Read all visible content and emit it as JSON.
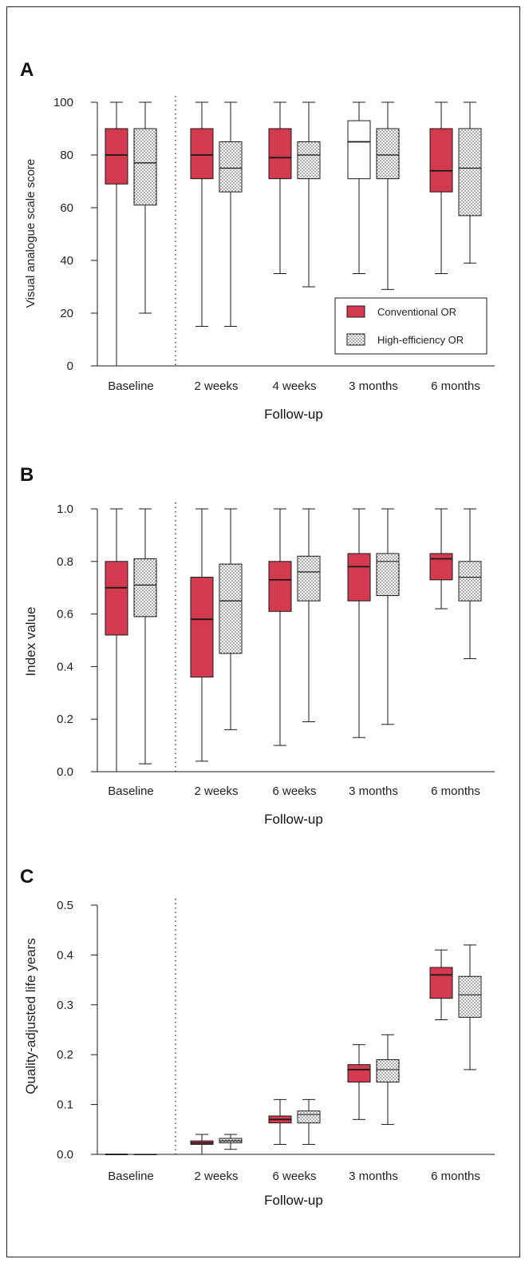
{
  "colors": {
    "conventional": "#d33a4e",
    "stroke": "#1a1a1a",
    "dots": "#333333"
  },
  "chart_data": [
    {
      "panel": "A",
      "type": "boxplot",
      "xlabel": "Follow-up",
      "ylabel": "Visual analogue scale score",
      "ylim": [
        0,
        100
      ],
      "yticks": [
        "0",
        "20",
        "40",
        "60",
        "80",
        "100"
      ],
      "yticks_values": [
        0,
        20,
        40,
        60,
        80,
        100
      ],
      "categories": [
        "Baseline",
        "2 weeks",
        "4 weeks",
        "3 months",
        "6 months"
      ],
      "legend": {
        "position": "bottom-right",
        "entries": [
          "Conventional OR",
          "High-efficiency OR"
        ]
      },
      "series": [
        {
          "name": "Conventional OR",
          "fill": "solid",
          "boxes": [
            {
              "min": 0,
              "q1": 69,
              "median": 80,
              "q3": 90,
              "max": 100
            },
            {
              "min": 15,
              "q1": 71,
              "median": 80,
              "q3": 90,
              "max": 100
            },
            {
              "min": 35,
              "q1": 71,
              "median": 79,
              "q3": 90,
              "max": 100
            },
            {
              "min": 35,
              "q1": 71,
              "median": 85,
              "q3": 93,
              "max": 100,
              "unfilled": true
            },
            {
              "min": 35,
              "q1": 66,
              "median": 74,
              "q3": 90,
              "max": 100
            }
          ]
        },
        {
          "name": "High-efficiency OR",
          "fill": "dotted",
          "boxes": [
            {
              "min": 20,
              "q1": 61,
              "median": 77,
              "q3": 90,
              "max": 100
            },
            {
              "min": 15,
              "q1": 66,
              "median": 75,
              "q3": 85,
              "max": 100
            },
            {
              "min": 30,
              "q1": 71,
              "median": 80,
              "q3": 85,
              "max": 100
            },
            {
              "min": 29,
              "q1": 71,
              "median": 80,
              "q3": 90,
              "max": 100
            },
            {
              "min": 39,
              "q1": 57,
              "median": 75,
              "q3": 90,
              "max": 100
            }
          ]
        }
      ]
    },
    {
      "panel": "B",
      "type": "boxplot",
      "xlabel": "Follow-up",
      "ylabel": "Index value",
      "ylim": [
        0,
        1
      ],
      "yticks": [
        "0.0",
        "0.2",
        "0.4",
        "0.6",
        "0.8",
        "1.0"
      ],
      "yticks_values": [
        0,
        0.2,
        0.4,
        0.6,
        0.8,
        1.0
      ],
      "categories": [
        "Baseline",
        "2 weeks",
        "6 weeks",
        "3 months",
        "6 months"
      ],
      "series": [
        {
          "name": "Conventional OR",
          "fill": "solid",
          "boxes": [
            {
              "min": 0,
              "q1": 0.52,
              "median": 0.7,
              "q3": 0.8,
              "max": 1.0
            },
            {
              "min": 0.04,
              "q1": 0.36,
              "median": 0.58,
              "q3": 0.74,
              "max": 1.0
            },
            {
              "min": 0.1,
              "q1": 0.61,
              "median": 0.73,
              "q3": 0.8,
              "max": 1.0
            },
            {
              "min": 0.13,
              "q1": 0.65,
              "median": 0.78,
              "q3": 0.83,
              "max": 1.0
            },
            {
              "min": 0.62,
              "q1": 0.73,
              "median": 0.81,
              "q3": 0.83,
              "max": 1.0
            }
          ]
        },
        {
          "name": "High-efficiency OR",
          "fill": "dotted",
          "boxes": [
            {
              "min": 0.03,
              "q1": 0.59,
              "median": 0.71,
              "q3": 0.81,
              "max": 1.0
            },
            {
              "min": 0.16,
              "q1": 0.45,
              "median": 0.65,
              "q3": 0.79,
              "max": 1.0
            },
            {
              "min": 0.19,
              "q1": 0.65,
              "median": 0.76,
              "q3": 0.82,
              "max": 1.0
            },
            {
              "min": 0.18,
              "q1": 0.67,
              "median": 0.8,
              "q3": 0.83,
              "max": 1.0
            },
            {
              "min": 0.43,
              "q1": 0.65,
              "median": 0.74,
              "q3": 0.8,
              "max": 1.0
            }
          ]
        }
      ]
    },
    {
      "panel": "C",
      "type": "boxplot",
      "xlabel": "Follow-up",
      "ylabel": "Quality-adjusted life years",
      "ylim": [
        0,
        0.5
      ],
      "yticks": [
        "0.0",
        "0.1",
        "0.2",
        "0.3",
        "0.4",
        "0.5"
      ],
      "yticks_values": [
        0,
        0.1,
        0.2,
        0.3,
        0.4,
        0.5
      ],
      "categories": [
        "Baseline",
        "2 weeks",
        "6 weeks",
        "3 months",
        "6 months"
      ],
      "series": [
        {
          "name": "Conventional OR",
          "fill": "solid",
          "boxes": [
            {
              "min": 0,
              "q1": 0,
              "median": 0,
              "q3": 0,
              "max": 0
            },
            {
              "min": 0.0,
              "q1": 0.02,
              "median": 0.023,
              "q3": 0.027,
              "max": 0.04
            },
            {
              "min": 0.02,
              "q1": 0.063,
              "median": 0.07,
              "q3": 0.077,
              "max": 0.11
            },
            {
              "min": 0.07,
              "q1": 0.145,
              "median": 0.17,
              "q3": 0.18,
              "max": 0.22
            },
            {
              "min": 0.27,
              "q1": 0.313,
              "median": 0.36,
              "q3": 0.375,
              "max": 0.41
            }
          ]
        },
        {
          "name": "High-efficiency OR",
          "fill": "dotted",
          "boxes": [
            {
              "min": 0,
              "q1": 0,
              "median": 0,
              "q3": 0,
              "max": 0
            },
            {
              "min": 0.01,
              "q1": 0.023,
              "median": 0.027,
              "q3": 0.032,
              "max": 0.04
            },
            {
              "min": 0.02,
              "q1": 0.063,
              "median": 0.08,
              "q3": 0.087,
              "max": 0.11
            },
            {
              "min": 0.06,
              "q1": 0.145,
              "median": 0.17,
              "q3": 0.19,
              "max": 0.24
            },
            {
              "min": 0.17,
              "q1": 0.275,
              "median": 0.32,
              "q3": 0.357,
              "max": 0.42
            }
          ]
        }
      ]
    }
  ]
}
